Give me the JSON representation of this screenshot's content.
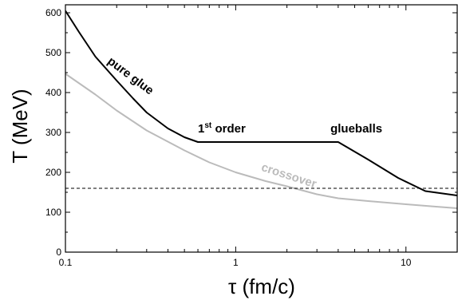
{
  "chart_data": {
    "type": "line",
    "title": "",
    "xlabel": "τ (fm/c)",
    "ylabel": "T (MeV)",
    "xscale": "log",
    "xlim": [
      0.1,
      20
    ],
    "ylim": [
      0,
      620
    ],
    "grid": false,
    "legend": "none",
    "x_ticks": [
      {
        "value": 0.1,
        "label": "0.1"
      },
      {
        "value": 1,
        "label": "1"
      },
      {
        "value": 10,
        "label": "10"
      }
    ],
    "y_ticks": [
      {
        "value": 0,
        "label": "0"
      },
      {
        "value": 100,
        "label": "100"
      },
      {
        "value": 200,
        "label": "200"
      },
      {
        "value": 300,
        "label": "300"
      },
      {
        "value": 400,
        "label": "400"
      },
      {
        "value": 500,
        "label": "500"
      },
      {
        "value": 600,
        "label": "600"
      }
    ],
    "series": [
      {
        "key": "first-order",
        "color": "#000000",
        "style": "solid",
        "points": [
          [
            0.1,
            605
          ],
          [
            0.12,
            552
          ],
          [
            0.15,
            490
          ],
          [
            0.2,
            430
          ],
          [
            0.25,
            385
          ],
          [
            0.3,
            350
          ],
          [
            0.4,
            310
          ],
          [
            0.5,
            288
          ],
          [
            0.6,
            276
          ],
          [
            1.0,
            276
          ],
          [
            2.0,
            276
          ],
          [
            4.0,
            276
          ],
          [
            6.0,
            232
          ],
          [
            9.0,
            186
          ],
          [
            13.0,
            153
          ],
          [
            20.0,
            142
          ]
        ]
      },
      {
        "key": "crossover",
        "color": "#bbbbbb",
        "style": "solid",
        "points": [
          [
            0.1,
            447
          ],
          [
            0.15,
            395
          ],
          [
            0.2,
            355
          ],
          [
            0.3,
            305
          ],
          [
            0.5,
            255
          ],
          [
            0.7,
            225
          ],
          [
            1.0,
            200
          ],
          [
            1.5,
            178
          ],
          [
            2.0,
            165
          ],
          [
            3.0,
            145
          ],
          [
            4.0,
            135
          ],
          [
            6.0,
            128
          ],
          [
            10.0,
            120
          ],
          [
            15.0,
            114
          ],
          [
            20.0,
            110
          ]
        ]
      },
      {
        "key": "critical-temperature",
        "color": "#000000",
        "style": "dashed",
        "points": [
          [
            0.1,
            160
          ],
          [
            20.0,
            160
          ]
        ]
      }
    ],
    "annotations": [
      {
        "key": "pure-glue",
        "text": "pure glue",
        "color": "#000000",
        "x": 0.175,
        "y": 475,
        "rotate": 37
      },
      {
        "key": "first-order-label",
        "text": "1",
        "superscript": "st",
        "suffix": " order",
        "color": "#000000",
        "x": 0.6,
        "y": 300
      },
      {
        "key": "glueballs",
        "text": "glueballs",
        "color": "#000000",
        "x": 3.6,
        "y": 300
      },
      {
        "key": "crossover",
        "text": "crossover",
        "color": "#bbbbbb",
        "x": 1.4,
        "y": 205,
        "rotate": 18
      }
    ]
  }
}
